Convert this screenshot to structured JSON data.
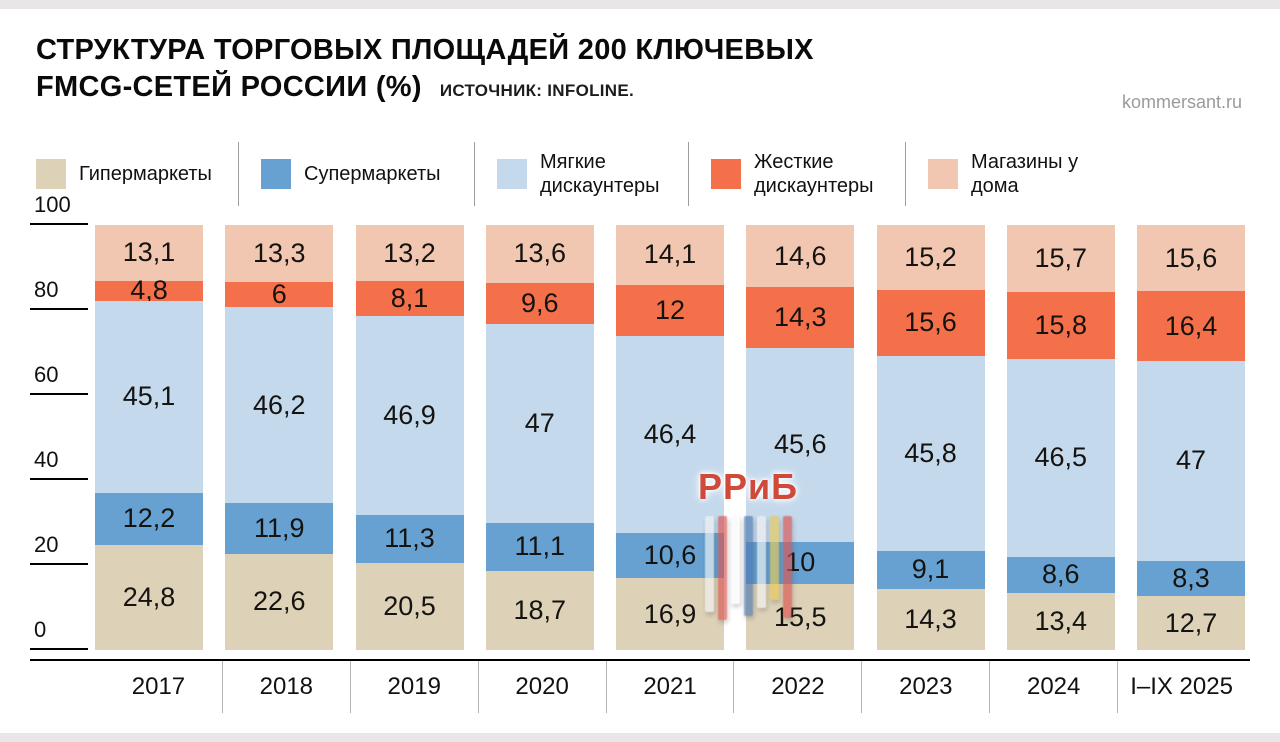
{
  "header": {
    "title_line1": "СТРУКТУРА ТОРГОВЫХ ПЛОЩАДЕЙ 200 КЛЮЧЕВЫХ",
    "title_line2": "FMCG-СЕТЕЙ РОССИИ (%)",
    "source": "ИСТОЧНИК: INFOLINE.",
    "site": "kommersant.ru"
  },
  "watermark": {
    "text": "РРиБ"
  },
  "chart_data": {
    "type": "bar",
    "stacked": true,
    "title": "СТРУКТУРА ТОРГОВЫХ ПЛОЩАДЕЙ 200 КЛЮЧЕВЫХ FMCG-СЕТЕЙ РОССИИ (%)",
    "source": "ИСТОЧНИК: INFOLINE.",
    "legend_position": "top",
    "value_label_style": "inside, decimal comma",
    "categories": [
      "2017",
      "2018",
      "2019",
      "2020",
      "2021",
      "2022",
      "2023",
      "2024",
      "I–IX 2025"
    ],
    "series": [
      {
        "name": "Гипермаркеты",
        "color": "#ddd2b8",
        "values": [
          24.8,
          22.6,
          20.5,
          18.7,
          16.9,
          15.5,
          14.3,
          13.4,
          12.7
        ]
      },
      {
        "name": "Супермаркеты",
        "color": "#66a1d2",
        "values": [
          12.2,
          11.9,
          11.3,
          11.1,
          10.6,
          10,
          9.1,
          8.6,
          8.3
        ]
      },
      {
        "name": "Мягкие дискаунтеры",
        "color": "#c4d9ec",
        "values": [
          45.1,
          46.2,
          46.9,
          47,
          46.4,
          45.6,
          45.8,
          46.5,
          47
        ]
      },
      {
        "name": "Жесткие дискаунтеры",
        "color": "#f4704a",
        "values": [
          4.8,
          6,
          8.1,
          9.6,
          12,
          14.3,
          15.6,
          15.8,
          16.4
        ]
      },
      {
        "name": "Магазины у дома",
        "color": "#f2c7b2",
        "values": [
          13.1,
          13.3,
          13.2,
          13.6,
          14.1,
          14.6,
          15.2,
          15.7,
          15.6
        ]
      }
    ],
    "ylim": [
      0,
      100
    ],
    "yticks": [
      0,
      20,
      40,
      60,
      80,
      100
    ]
  }
}
